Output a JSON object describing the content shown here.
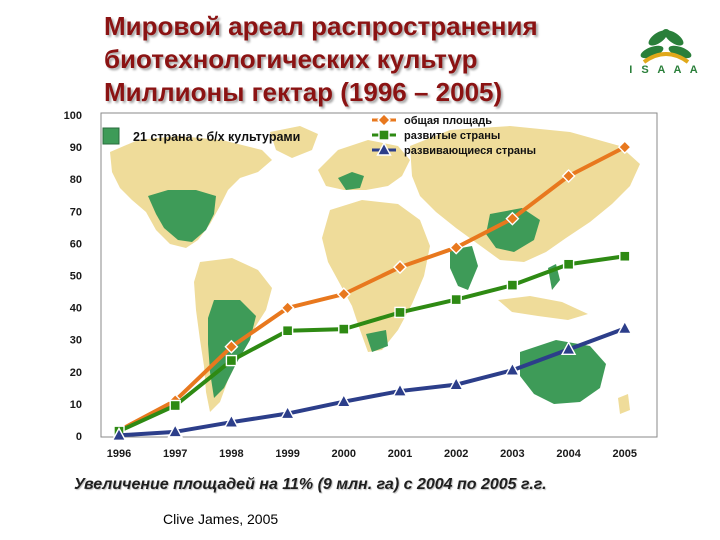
{
  "header": {
    "title_lines": [
      "Мировой ареал распространения",
      "биотехнологических культур",
      "Миллионы гектар (1996 – 2005)"
    ],
    "logo_text": "I S A A A"
  },
  "colors": {
    "title": "#8b1313",
    "total": "#e8781e",
    "developed": "#2e8a13",
    "developing": "#2c3e8a",
    "map_gm": "#3e9b58",
    "map_other": "#efdc9a",
    "logo": "#2a7f3a"
  },
  "map_legend": {
    "label": "21 страна с б/х культурами"
  },
  "chart_data": {
    "type": "line",
    "x": [
      "1996",
      "1997",
      "1998",
      "1999",
      "2000",
      "2001",
      "2002",
      "2003",
      "2004",
      "2005"
    ],
    "ylim": [
      0,
      100
    ],
    "yticks": [
      0,
      10,
      20,
      30,
      40,
      50,
      60,
      70,
      80,
      90,
      100
    ],
    "grid": false,
    "legend_position": "top-right",
    "series": [
      {
        "name": "общая площадь",
        "color": "#e8781e",
        "marker": "diamond",
        "values": [
          1.7,
          11,
          27.8,
          39.9,
          44.2,
          52.6,
          58.7,
          67.7,
          81,
          90
        ]
      },
      {
        "name": "развитые страны",
        "color": "#2e8a13",
        "marker": "square",
        "values": [
          1.5,
          9.5,
          23.5,
          32.8,
          33.3,
          38.5,
          42.5,
          47,
          53.5,
          56
        ]
      },
      {
        "name": "развивающиеся страны",
        "color": "#2c3e8a",
        "marker": "triangle",
        "values": [
          0.2,
          1.3,
          4.3,
          7,
          10.7,
          14,
          16,
          20.5,
          27,
          33.5
        ]
      }
    ]
  },
  "footer": {
    "note": "Увеличение площадей на 11% (9 млн. га) с 2004 по 2005 г.г.",
    "credit": "Clive James, 2005"
  }
}
